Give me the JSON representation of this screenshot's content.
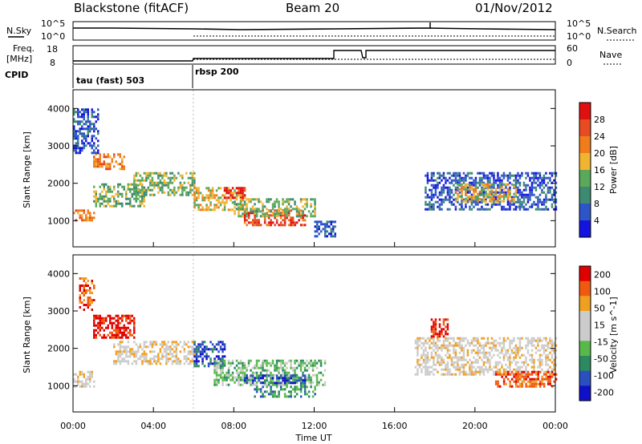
{
  "header": {
    "station": "Blackstone (fitACF)",
    "beam": "Beam 20",
    "date": "01/Nov/2012"
  },
  "top_panels": {
    "nsky_label": "N.Sky",
    "nsearch_label": "N.Search",
    "freq_label_1": "Freq.",
    "freq_label_2": "[MHz]",
    "nave_label": "Nave",
    "cpid_label": "CPID",
    "nsky_ticks": [
      "10^5",
      "10^0"
    ],
    "nsearch_ticks": [
      "10^5",
      "10^0"
    ],
    "freq_ticks": [
      "18",
      "8"
    ],
    "nave_ticks": [
      "60",
      "0"
    ],
    "cpid_1": "tau (fast) 503",
    "cpid_2": "rbsp 200"
  },
  "axes": {
    "xlabel": "Time UT",
    "ylabel": "Slant Range [km]",
    "x_ticks": [
      "00:00",
      "04:00",
      "08:00",
      "12:00",
      "16:00",
      "20:00",
      "00:00"
    ],
    "y_ticks": [
      "1000",
      "2000",
      "3000",
      "4000"
    ]
  },
  "colors": {
    "power": [
      "#1414e0",
      "#2e55c8",
      "#3d8a72",
      "#5aa85a",
      "#f0b431",
      "#f07d1a",
      "#e84a22",
      "#e01010"
    ],
    "velocity": [
      "#e00000",
      "#f05a10",
      "#f0a020",
      "#cccccc",
      "#cccccc",
      "#58b84a",
      "#2c8a60",
      "#2a50c0",
      "#1010c8"
    ]
  },
  "chart_data": [
    {
      "type": "heatmap",
      "name": "power",
      "colorbar_label": "Power [dB]",
      "colorbar_ticks": [
        "4",
        "8",
        "12",
        "16",
        "20",
        "24",
        "28"
      ],
      "x_range": [
        "00:00",
        "24:00"
      ],
      "y_range_km": [
        300,
        4500
      ],
      "regions": [
        {
          "t0": 0.0,
          "t1": 1.0,
          "r0": 1000,
          "r1": 1300,
          "level": 5
        },
        {
          "t0": 1.0,
          "t1": 3.5,
          "r0": 1400,
          "r1": 2000,
          "level": 3
        },
        {
          "t0": 1.0,
          "t1": 2.5,
          "r0": 2400,
          "r1": 2800,
          "level": 5
        },
        {
          "t0": 0.0,
          "t1": 1.2,
          "r0": 2800,
          "r1": 4000,
          "level": 1
        },
        {
          "t0": 3.0,
          "t1": 6.0,
          "r0": 1700,
          "r1": 2300,
          "level": 3
        },
        {
          "t0": 6.0,
          "t1": 8.5,
          "r0": 1300,
          "r1": 1900,
          "level": 4
        },
        {
          "t0": 7.5,
          "t1": 8.5,
          "r0": 1600,
          "r1": 1900,
          "level": 7
        },
        {
          "t0": 8.5,
          "t1": 11.5,
          "r0": 900,
          "r1": 1300,
          "level": 6
        },
        {
          "t0": 8.0,
          "t1": 12.0,
          "r0": 1100,
          "r1": 1600,
          "level": 3
        },
        {
          "t0": 12.0,
          "t1": 13.0,
          "r0": 600,
          "r1": 1000,
          "level": 1
        },
        {
          "t0": 17.5,
          "t1": 24.0,
          "r0": 1300,
          "r1": 2300,
          "level": 1
        },
        {
          "t0": 19.0,
          "t1": 22.0,
          "r0": 1500,
          "r1": 2000,
          "level": 4
        }
      ]
    },
    {
      "type": "heatmap",
      "name": "velocity",
      "colorbar_label": "Velocity [m s^-1]",
      "colorbar_ticks": [
        "200",
        "100",
        "50",
        "15",
        "-15",
        "-50",
        "-100",
        "-200"
      ],
      "x_range": [
        "00:00",
        "24:00"
      ],
      "y_range_km": [
        300,
        4500
      ],
      "regions": [
        {
          "t0": 0.0,
          "t1": 1.0,
          "r0": 1000,
          "r1": 1400,
          "level": 3
        },
        {
          "t0": 0.3,
          "t1": 1.0,
          "r0": 3000,
          "r1": 3900,
          "level": 1
        },
        {
          "t0": 1.0,
          "t1": 3.0,
          "r0": 2300,
          "r1": 2900,
          "level": 0
        },
        {
          "t0": 2.0,
          "t1": 6.0,
          "r0": 1600,
          "r1": 2200,
          "level": 3
        },
        {
          "t0": 6.0,
          "t1": 7.5,
          "r0": 1500,
          "r1": 2200,
          "level": 7
        },
        {
          "t0": 7.0,
          "t1": 12.5,
          "r0": 1000,
          "r1": 1700,
          "level": 5
        },
        {
          "t0": 8.5,
          "t1": 11.5,
          "r0": 1100,
          "r1": 1300,
          "level": 7
        },
        {
          "t0": 9.0,
          "t1": 12.0,
          "r0": 700,
          "r1": 1000,
          "level": 6
        },
        {
          "t0": 17.0,
          "t1": 24.0,
          "r0": 1300,
          "r1": 2300,
          "level": 3
        },
        {
          "t0": 17.8,
          "t1": 18.6,
          "r0": 2300,
          "r1": 2800,
          "level": 0
        },
        {
          "t0": 21.0,
          "t1": 24.0,
          "r0": 1000,
          "r1": 1400,
          "level": 1
        }
      ]
    }
  ]
}
